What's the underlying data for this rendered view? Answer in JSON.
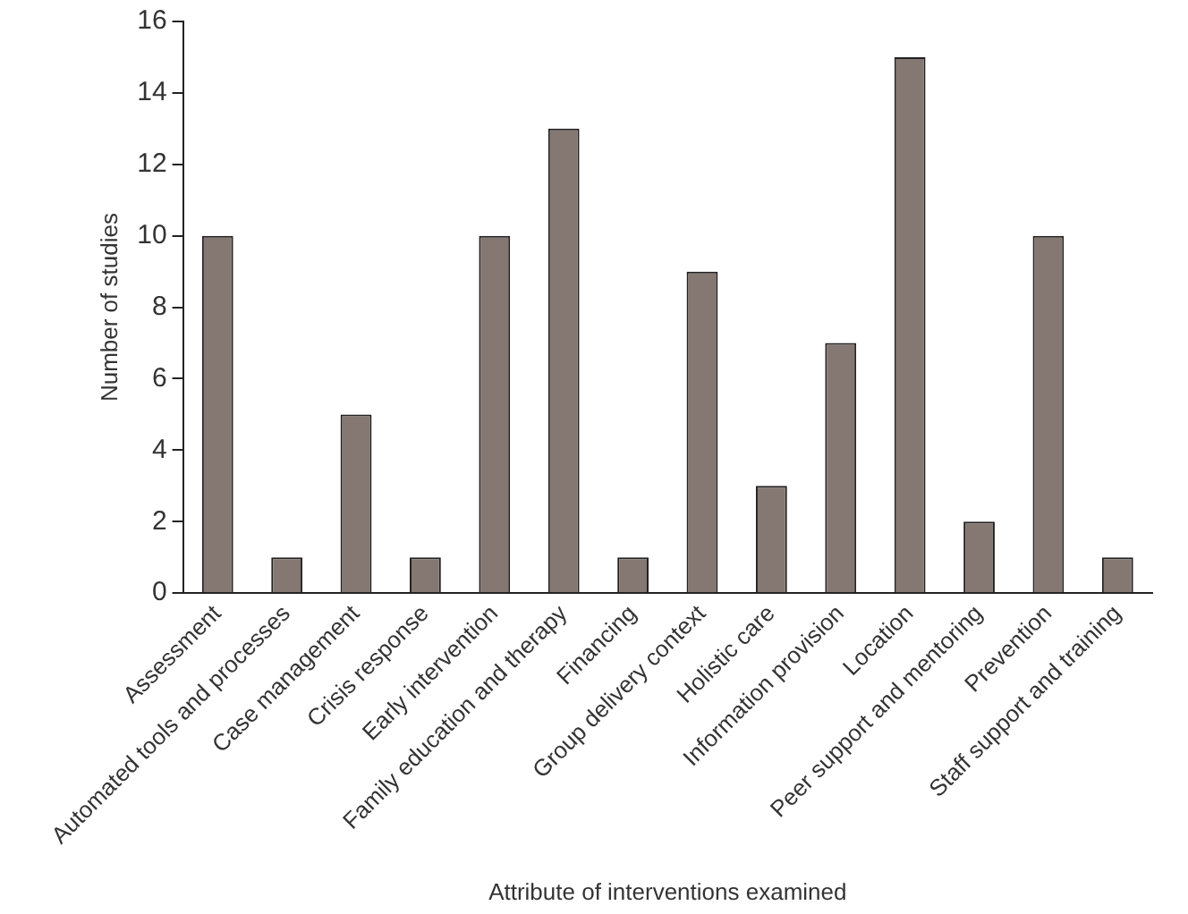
{
  "chart_data": {
    "type": "bar",
    "xlabel": "Attribute of interventions examined",
    "ylabel": "Number of studies",
    "categories": [
      "Assessment",
      "Automated tools and processes",
      "Case management",
      "Crisis response",
      "Early intervention",
      "Family education and therapy",
      "Financing",
      "Group delivery context",
      "Holistic care",
      "Information provision",
      "Location",
      "Peer support and mentoring",
      "Prevention",
      "Staff support and training"
    ],
    "values": [
      10,
      1,
      5,
      1,
      10,
      13,
      1,
      9,
      3,
      7,
      15,
      2,
      10,
      1
    ],
    "color": "#857872",
    "ylim": [
      0,
      16
    ],
    "yticks": [
      0,
      2,
      4,
      6,
      8,
      10,
      12,
      14,
      16
    ],
    "grid": false,
    "legend": false
  }
}
